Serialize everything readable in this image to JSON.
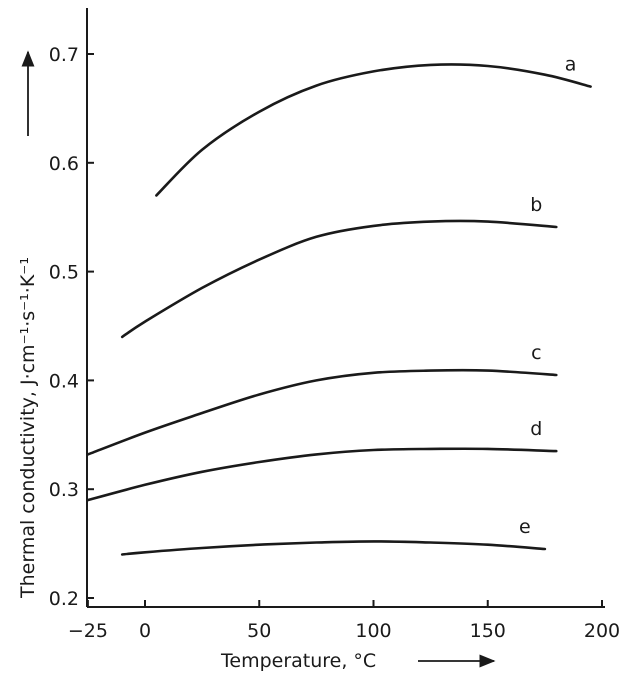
{
  "chart_data": {
    "type": "line",
    "title": "",
    "xlabel": "Temperature, °C",
    "ylabel": "Thermal conductivity, J·cm⁻¹·s⁻¹·K⁻¹",
    "xlim": [
      -25,
      200
    ],
    "ylim": [
      0.2,
      0.75
    ],
    "x_ticks": [
      -25,
      0,
      50,
      100,
      150,
      200
    ],
    "y_ticks": [
      0.2,
      0.3,
      0.4,
      0.5,
      0.6,
      0.7
    ],
    "x_tick_labels": [
      "−25",
      "0",
      "50",
      "100",
      "150",
      "200"
    ],
    "y_tick_labels": [
      "0.2",
      "0.3",
      "0.4",
      "0.5",
      "0.6",
      "0.7"
    ],
    "grid": false,
    "legend": "inline labels at right end of each curve",
    "series": [
      {
        "label": "a",
        "x": [
          5,
          25,
          50,
          75,
          100,
          125,
          150,
          175,
          195
        ],
        "y": [
          0.57,
          0.612,
          0.647,
          0.671,
          0.684,
          0.69,
          0.689,
          0.681,
          0.67
        ]
      },
      {
        "label": "b",
        "x": [
          -10,
          0,
          25,
          50,
          75,
          100,
          125,
          150,
          180
        ],
        "y": [
          0.44,
          0.454,
          0.485,
          0.511,
          0.532,
          0.542,
          0.546,
          0.546,
          0.541
        ]
      },
      {
        "label": "c",
        "x": [
          -25,
          0,
          25,
          50,
          75,
          100,
          125,
          150,
          180
        ],
        "y": [
          0.332,
          0.352,
          0.37,
          0.387,
          0.4,
          0.407,
          0.409,
          0.409,
          0.405
        ]
      },
      {
        "label": "d",
        "x": [
          -25,
          0,
          25,
          50,
          75,
          100,
          125,
          150,
          180
        ],
        "y": [
          0.29,
          0.304,
          0.316,
          0.325,
          0.332,
          0.336,
          0.337,
          0.337,
          0.335
        ]
      },
      {
        "label": "e",
        "x": [
          -10,
          0,
          25,
          50,
          75,
          100,
          125,
          150,
          175
        ],
        "y": [
          0.24,
          0.242,
          0.246,
          0.249,
          0.251,
          0.252,
          0.251,
          0.249,
          0.245
        ]
      }
    ]
  }
}
